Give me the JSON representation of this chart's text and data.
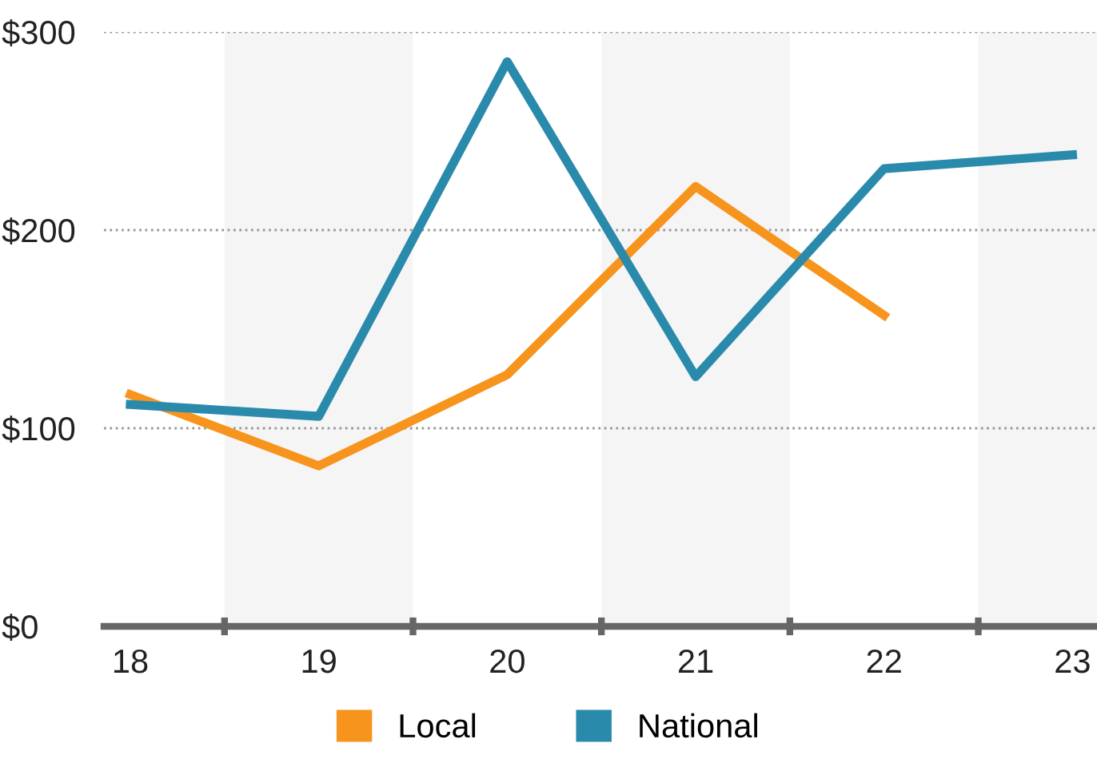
{
  "chart_data": {
    "type": "line",
    "categories": [
      "18",
      "19",
      "20",
      "21",
      "22",
      "23"
    ],
    "series": [
      {
        "name": "Local",
        "color": "#f7941d",
        "values": [
          117,
          81,
          127,
          222,
          157,
          null
        ]
      },
      {
        "name": "National",
        "color": "#2a8aab",
        "values": [
          112,
          106,
          285,
          126,
          231,
          238
        ]
      }
    ],
    "ylim": [
      0,
      300
    ],
    "yticks": [
      {
        "value": 0,
        "label": "$0"
      },
      {
        "value": 100,
        "label": "$100"
      },
      {
        "value": 200,
        "label": "$200"
      },
      {
        "value": 300,
        "label": "$300"
      }
    ],
    "bands": [
      {
        "axis": "x",
        "from": "19",
        "to": "19",
        "color": "#f5f5f5"
      },
      {
        "axis": "x",
        "from": "21",
        "to": "21",
        "color": "#f5f5f5"
      },
      {
        "axis": "x",
        "from": "23",
        "to": "23",
        "color": "#f5f5f5"
      }
    ],
    "grid": "y",
    "legend": "bottom",
    "marker": "none",
    "line_style": "solid"
  }
}
